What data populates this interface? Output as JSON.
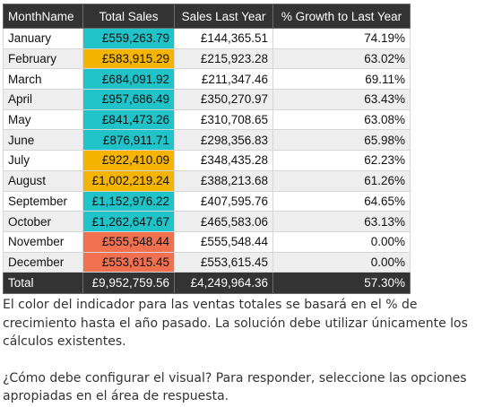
{
  "table": {
    "headers": [
      "MonthName",
      "Total Sales",
      "Sales Last Year",
      "% Growth to Last Year"
    ],
    "rows": [
      {
        "month": "January",
        "total_sales": "£559,263.79",
        "sales_last_year": "£144,365.51",
        "growth": "74.19%",
        "indicator_color": "#20c4c8"
      },
      {
        "month": "February",
        "total_sales": "£583,915.29",
        "sales_last_year": "£215,923.28",
        "growth": "63.02%",
        "indicator_color": "#f5b400"
      },
      {
        "month": "March",
        "total_sales": "£684,091.92",
        "sales_last_year": "£211,347.46",
        "growth": "69.11%",
        "indicator_color": "#20c4c8"
      },
      {
        "month": "April",
        "total_sales": "£957,686.49",
        "sales_last_year": "£350,270.97",
        "growth": "63.43%",
        "indicator_color": "#20c4c8"
      },
      {
        "month": "May",
        "total_sales": "£841,473.26",
        "sales_last_year": "£310,708.65",
        "growth": "63.08%",
        "indicator_color": "#20c4c8"
      },
      {
        "month": "June",
        "total_sales": "£876,911.71",
        "sales_last_year": "£298,356.83",
        "growth": "65.98%",
        "indicator_color": "#20c4c8"
      },
      {
        "month": "July",
        "total_sales": "£922,410.09",
        "sales_last_year": "£348,435.28",
        "growth": "62.23%",
        "indicator_color": "#f5b400"
      },
      {
        "month": "August",
        "total_sales": "£1,002,219.24",
        "sales_last_year": "£388,213.68",
        "growth": "61.26%",
        "indicator_color": "#f5b400"
      },
      {
        "month": "September",
        "total_sales": "£1,152,976.22",
        "sales_last_year": "£407,595.76",
        "growth": "64.65%",
        "indicator_color": "#20c4c8"
      },
      {
        "month": "October",
        "total_sales": "£1,262,647.67",
        "sales_last_year": "£465,583.06",
        "growth": "63.13%",
        "indicator_color": "#20c4c8"
      },
      {
        "month": "November",
        "total_sales": "£555,548.44",
        "sales_last_year": "£555,548.44",
        "growth": "0.00%",
        "indicator_color": "#f07050"
      },
      {
        "month": "December",
        "total_sales": "£553,615.45",
        "sales_last_year": "£553,615.45",
        "growth": "0.00%",
        "indicator_color": "#f07050"
      }
    ],
    "total": {
      "month": "Total",
      "total_sales": "£9,952,759.56",
      "sales_last_year": "£4,249,964.36",
      "growth": "57.30%"
    }
  },
  "question": {
    "paragraph1": "El color del indicador para las ventas totales se basará en el % de crecimiento hasta el año pasado. La solución debe utilizar únicamente los cálculos existentes.",
    "paragraph2": "¿Cómo debe configurar el visual? Para responder, seleccione las opciones apropiadas en el área de respuesta."
  }
}
